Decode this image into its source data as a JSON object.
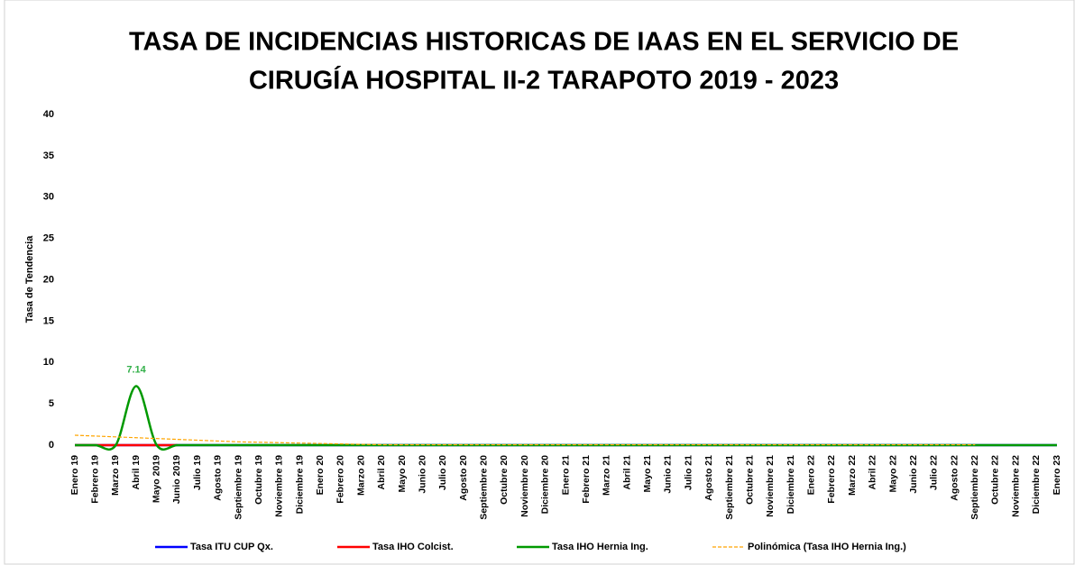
{
  "chart_data": {
    "type": "line",
    "title": [
      "TASA DE INCIDENCIAS HISTORICAS DE IAAS EN EL SERVICIO DE",
      "CIRUGÍA HOSPITAL II-2 TARAPOTO 2019 - 2023"
    ],
    "y_label": "Tasa de Tendencia",
    "categories": [
      "Enero 19",
      "Febrero 19",
      "Marzo 19",
      "Abril 19",
      "Mayo 2019",
      "Junio 2019",
      "Julio 19",
      "Agosto 19",
      "Septiembre 19",
      "Octubre 19",
      "Noviembre 19",
      "Diciembre 19",
      "Enero 20",
      "Febrero 20",
      "Marzo 20",
      "Abril 20",
      "Mayo 20",
      "Junio 20",
      "Julio 20",
      "Agosto 20",
      "Septiembre 20",
      "Octubre 20",
      "Noviembre 20",
      "Diciembre 20",
      "Enero 21",
      "Febrero 21",
      "Marzo 21",
      "Abril 21",
      "Mayo 21",
      "Junio 21",
      "Julio 21",
      "Agosto 21",
      "Septiembre 21",
      "Octubre 21",
      "Noviembre 21",
      "Diciembre 21",
      "Enero 22",
      "Febrero 22",
      "Marzo 22",
      "Abril 22",
      "Mayo 22",
      "Junio 22",
      "Julio 22",
      "Agosto 22",
      "Septiembre 22",
      "Octubre 22",
      "Noviembre 22",
      "Diciembre 22",
      "Enero 23"
    ],
    "ylim": [
      0,
      40
    ],
    "yticks": [
      0,
      5,
      10,
      15,
      20,
      25,
      30,
      35,
      40
    ],
    "grid": false,
    "legend": "bottom",
    "series": [
      {
        "name": "Tasa ITU CUP Qx.",
        "color": "#0000ff",
        "smooth": false,
        "dashed": false,
        "values": [
          0,
          0,
          0,
          0,
          0,
          0,
          0,
          0,
          0,
          0,
          0,
          0,
          0,
          0,
          0,
          0,
          0,
          0,
          0,
          0,
          0,
          0,
          0,
          0,
          0,
          0,
          0,
          0,
          0,
          0,
          0,
          0,
          0,
          0,
          0,
          0,
          0,
          0,
          0,
          0,
          0,
          0,
          0,
          0,
          0,
          0,
          0,
          0,
          0
        ]
      },
      {
        "name": "Tasa IHO Colcist.",
        "color": "#ff0000",
        "smooth": false,
        "dashed": false,
        "values": [
          0,
          0,
          0,
          0,
          0,
          0,
          null,
          null,
          null,
          null,
          null,
          null,
          null,
          null,
          null,
          null,
          null,
          null,
          null,
          null,
          null,
          null,
          null,
          null,
          null,
          null,
          null,
          null,
          null,
          null,
          null,
          null,
          null,
          null,
          null,
          null,
          null,
          null,
          null,
          null,
          null,
          null,
          null,
          null,
          null,
          null,
          null,
          null,
          null
        ]
      },
      {
        "name": "Tasa IHO Hernia Ing.",
        "color": "#009900",
        "smooth": true,
        "dashed": false,
        "values": [
          0,
          0,
          0,
          7.14,
          0,
          0,
          0,
          0,
          0,
          0,
          0,
          0,
          0,
          0,
          0,
          0,
          0,
          0,
          0,
          0,
          0,
          0,
          0,
          0,
          0,
          0,
          0,
          0,
          0,
          0,
          0,
          0,
          0,
          0,
          0,
          0,
          0,
          0,
          0,
          0,
          0,
          0,
          0,
          0,
          0,
          0,
          0,
          0,
          0
        ],
        "value_labels": [
          null,
          null,
          null,
          "7.14",
          null,
          null,
          null,
          null,
          null,
          null,
          null,
          null,
          null,
          null,
          null,
          null,
          null,
          null,
          null,
          null,
          null,
          null,
          null,
          null,
          null,
          null,
          null,
          null,
          null,
          null,
          null,
          null,
          null,
          null,
          null,
          null,
          null,
          null,
          null,
          null,
          null,
          null,
          null,
          null,
          null,
          null,
          null,
          null,
          null
        ]
      },
      {
        "name": "Polinómica (Tasa IHO Hernia Ing.)",
        "color": "#ffa500",
        "smooth": false,
        "dashed": true,
        "values": [
          1.2,
          1.1,
          1.0,
          0.9,
          0.8,
          0.7,
          0.6,
          0.5,
          0.4,
          0.35,
          0.3,
          0.25,
          0.2,
          0.15,
          0.1,
          0.05,
          0.05,
          0.05,
          0.05,
          0.05,
          0.05,
          0.05,
          0.05,
          0.05,
          0.05,
          0.05,
          0.05,
          0.05,
          0.05,
          0.05,
          0.05,
          0.05,
          0.05,
          0.05,
          0.05,
          0.05,
          0.05,
          0.05,
          0.05,
          0.05,
          0.05,
          0.05,
          0.05,
          0.05,
          0.05,
          null,
          null,
          null,
          null
        ]
      }
    ]
  }
}
